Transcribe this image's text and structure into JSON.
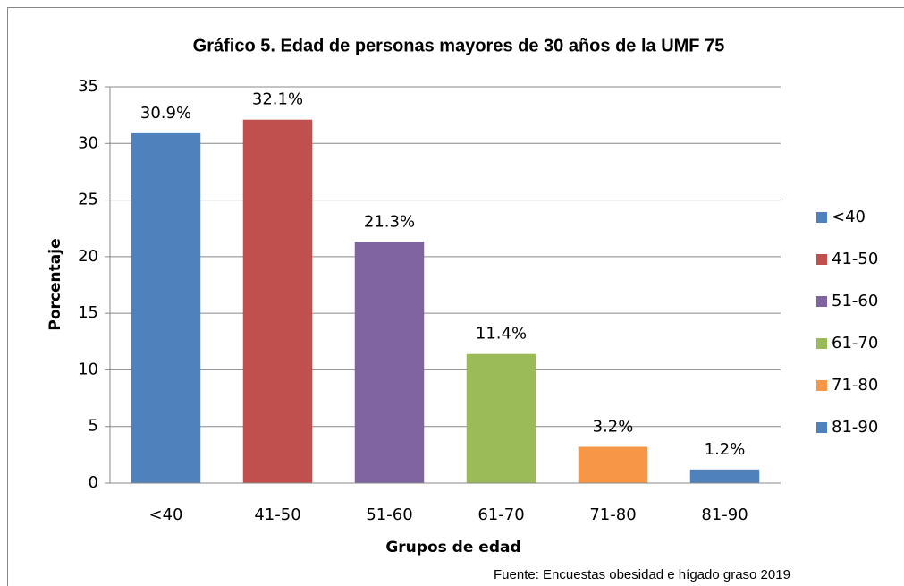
{
  "chart_data": {
    "type": "bar",
    "title": "Gráfico 5. Edad de personas mayores de 30 años de la UMF 75",
    "x_label": "Grupos de edad",
    "y_label": "Porcentaje",
    "source": "Fuente: Encuestas obesidad e hígado graso 2019",
    "categories": [
      "<40",
      "41-50",
      "51-60",
      "61-70",
      "71-80",
      "81-90"
    ],
    "values": [
      30.9,
      32.1,
      21.3,
      11.4,
      3.2,
      1.2
    ],
    "value_labels": [
      "30.9%",
      "32.1%",
      "21.3%",
      "11.4%",
      "3.2%",
      "1.2%"
    ],
    "colors": [
      "#4f81bd",
      "#c0504d",
      "#8064a2",
      "#9bbb59",
      "#f79646",
      "#4f81bd"
    ],
    "ylim": [
      0,
      35
    ],
    "yticks": [
      0,
      5,
      10,
      15,
      20,
      25,
      30,
      35
    ],
    "grid": true,
    "legend": "right"
  }
}
